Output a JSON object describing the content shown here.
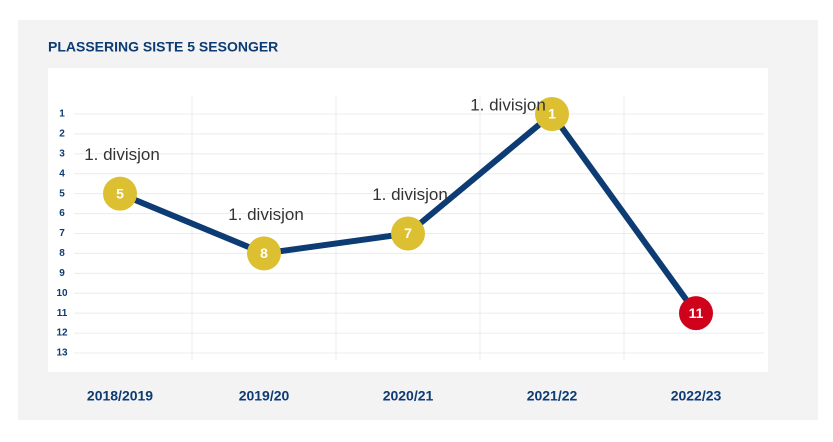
{
  "chart_data": {
    "type": "line",
    "title": "PLASSERING SISTE 5 SESONGER",
    "categories": [
      "2018/2019",
      "2019/20",
      "2020/21",
      "2021/22",
      "2022/23"
    ],
    "series": [
      {
        "values": [
          5,
          8,
          7,
          1,
          11
        ],
        "color": "#0d3b73",
        "marker_colors": [
          "#dcc032",
          "#dcc032",
          "#dcc032",
          "#dcc032",
          "#d0021b"
        ],
        "point_labels": [
          "1. divisjon",
          "1. divisjon",
          "1. divisjon",
          "1. divisjon",
          null
        ]
      }
    ],
    "ylim": [
      1,
      13
    ],
    "y_reversed": true,
    "yticks": [
      1,
      2,
      3,
      4,
      5,
      6,
      7,
      8,
      9,
      10,
      11,
      12,
      13
    ],
    "grid": true
  }
}
